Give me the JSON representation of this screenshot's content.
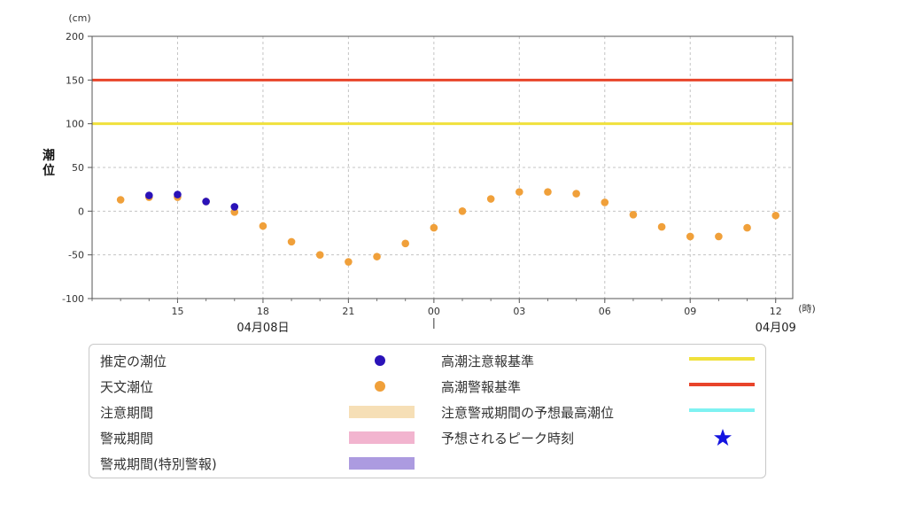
{
  "chart_data": {
    "type": "scatter",
    "y_unit_label": "(cm)",
    "x_unit_label": "(時)",
    "ylabel": "潮位",
    "ylim": [
      -100,
      200
    ],
    "y_ticks": [
      200,
      150,
      100,
      50,
      0,
      -50,
      -100
    ],
    "x_ticks": [
      {
        "hour": 15,
        "label": "15"
      },
      {
        "hour": 18,
        "label": "18"
      },
      {
        "hour": 21,
        "label": "21"
      },
      {
        "hour": 24,
        "label": "00"
      },
      {
        "hour": 27,
        "label": "03"
      },
      {
        "hour": 30,
        "label": "06"
      },
      {
        "hour": 33,
        "label": "09"
      },
      {
        "hour": 36,
        "label": "12"
      }
    ],
    "date_labels": [
      {
        "hour": 18,
        "label": "04月08日"
      },
      {
        "hour": 36,
        "label": "04月09"
      }
    ],
    "xlim": [
      12,
      36.6
    ],
    "grid": true,
    "thresholds": [
      {
        "name": "高潮注意報基準",
        "value": 100,
        "color": "#f0e13c"
      },
      {
        "name": "高潮警報基準",
        "value": 150,
        "color": "#e8442a"
      }
    ],
    "series": [
      {
        "name": "天文潮位",
        "color": "#f0a03a",
        "points": [
          {
            "hour": 13,
            "value": 13
          },
          {
            "hour": 14,
            "value": 16
          },
          {
            "hour": 15,
            "value": 16
          },
          {
            "hour": 16,
            "value": 11
          },
          {
            "hour": 17,
            "value": -1
          },
          {
            "hour": 18,
            "value": -17
          },
          {
            "hour": 19,
            "value": -35
          },
          {
            "hour": 20,
            "value": -50
          },
          {
            "hour": 21,
            "value": -58
          },
          {
            "hour": 22,
            "value": -52
          },
          {
            "hour": 23,
            "value": -37
          },
          {
            "hour": 24,
            "value": -19
          },
          {
            "hour": 25,
            "value": 0
          },
          {
            "hour": 26,
            "value": 14
          },
          {
            "hour": 27,
            "value": 22
          },
          {
            "hour": 28,
            "value": 22
          },
          {
            "hour": 29,
            "value": 20
          },
          {
            "hour": 30,
            "value": 10
          },
          {
            "hour": 31,
            "value": -4
          },
          {
            "hour": 32,
            "value": -18
          },
          {
            "hour": 33,
            "value": -29
          },
          {
            "hour": 34,
            "value": -29
          },
          {
            "hour": 35,
            "value": -19
          },
          {
            "hour": 36,
            "value": -5
          }
        ]
      },
      {
        "name": "推定の潮位",
        "color": "#2a12b8",
        "points": [
          {
            "hour": 14,
            "value": 18
          },
          {
            "hour": 15,
            "value": 19
          },
          {
            "hour": 16,
            "value": 11
          },
          {
            "hour": 17,
            "value": 5
          }
        ]
      }
    ]
  },
  "legend": {
    "left": [
      {
        "label": "推定の潮位",
        "type": "dot",
        "color": "#2a12b8"
      },
      {
        "label": "天文潮位",
        "type": "dot",
        "color": "#f0a03a"
      },
      {
        "label": "注意期間",
        "type": "band",
        "color": "#f6dfb6"
      },
      {
        "label": "警戒期間",
        "type": "band",
        "color": "#f2b4cf"
      },
      {
        "label": "警戒期間(特別警報)",
        "type": "band",
        "color": "#ac9be0"
      }
    ],
    "right": [
      {
        "label": "高潮注意報基準",
        "type": "line",
        "color": "#f0e13c"
      },
      {
        "label": "高潮警報基準",
        "type": "line",
        "color": "#e8442a"
      },
      {
        "label": "注意警戒期間の予想最高潮位",
        "type": "line",
        "color": "#7ff2f2"
      },
      {
        "label": "予想されるピーク時刻",
        "type": "star",
        "color": "#1414e0"
      }
    ]
  }
}
